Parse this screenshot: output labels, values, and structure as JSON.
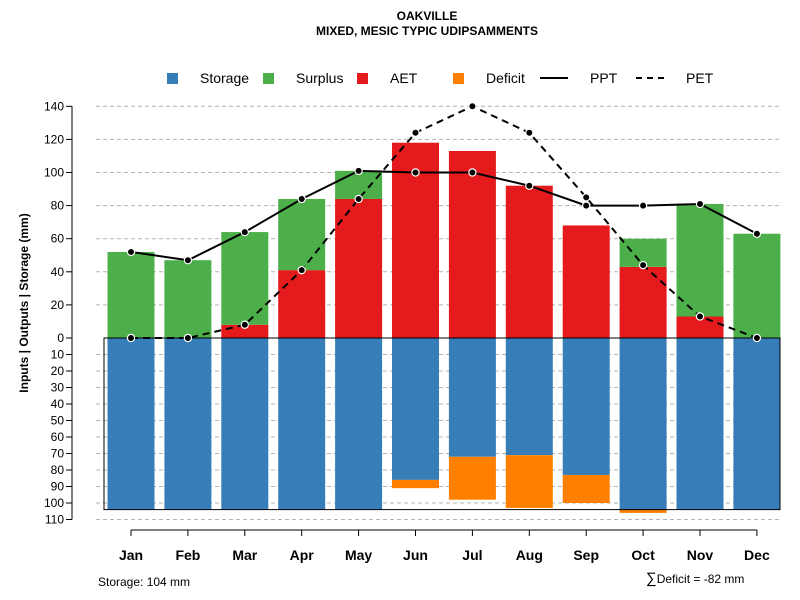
{
  "titles": {
    "line1": "OAKVILLE",
    "line2": "MIXED, MESIC TYPIC UDIPSAMMENTS"
  },
  "legend": [
    {
      "label": "Storage",
      "kind": "box",
      "color": "#377EB8"
    },
    {
      "label": "Surplus",
      "kind": "box",
      "color": "#4DAF4A"
    },
    {
      "label": "AET",
      "kind": "box",
      "color": "#E41A1C"
    },
    {
      "label": "Deficit",
      "kind": "box",
      "color": "#FF7F00"
    },
    {
      "label": "PPT",
      "kind": "solid-line",
      "color": "#000000"
    },
    {
      "label": "PET",
      "kind": "dashed-line",
      "color": "#000000"
    }
  ],
  "footer": {
    "storage": "Storage: 104 mm",
    "sigma": "∑",
    "deficit": "Deficit = -82 mm"
  },
  "chart_data": {
    "type": "bar",
    "categories": [
      "Jan",
      "Feb",
      "Mar",
      "Apr",
      "May",
      "Jun",
      "Jul",
      "Aug",
      "Sep",
      "Oct",
      "Nov",
      "Dec"
    ],
    "ylabel": "Inputs | Outputs | Storage    (mm)",
    "upper_axis": {
      "ylim": [
        0,
        140
      ],
      "ticks": [
        "0",
        "20",
        "40",
        "60",
        "80",
        "100",
        "120",
        "140"
      ]
    },
    "lower_axis": {
      "ylim": [
        0,
        110
      ],
      "ticks": [
        "10",
        "20",
        "30",
        "40",
        "50",
        "60",
        "70",
        "80",
        "90",
        "100",
        "110"
      ]
    },
    "series": [
      {
        "name": "AET",
        "values": [
          0,
          0,
          8,
          41,
          84,
          118,
          113,
          92,
          68,
          43,
          13,
          0
        ]
      },
      {
        "name": "Surplus",
        "values": [
          52,
          47,
          56,
          43,
          17,
          0,
          0,
          0,
          0,
          17,
          68,
          63
        ]
      },
      {
        "name": "Storage",
        "values": [
          104,
          104,
          104,
          104,
          104,
          86,
          72,
          71,
          83,
          104,
          104,
          104
        ]
      },
      {
        "name": "Deficit",
        "values": [
          0,
          0,
          0,
          0,
          0,
          5,
          26,
          32,
          17,
          2,
          0,
          0
        ]
      },
      {
        "name": "PPT",
        "values": [
          52,
          47,
          64,
          84,
          101,
          100,
          100,
          92,
          80,
          80,
          81,
          63
        ]
      },
      {
        "name": "PET",
        "values": [
          0,
          0,
          8,
          41,
          84,
          124,
          140,
          124,
          85,
          44,
          13,
          0
        ]
      }
    ],
    "storage_capacity": 104,
    "colors": {
      "storage": "#377EB8",
      "surplus": "#4DAF4A",
      "aet": "#E41A1C",
      "deficit": "#FF7F00",
      "grid": "#B3B3B3"
    },
    "grid": true,
    "legend_position": "top"
  }
}
